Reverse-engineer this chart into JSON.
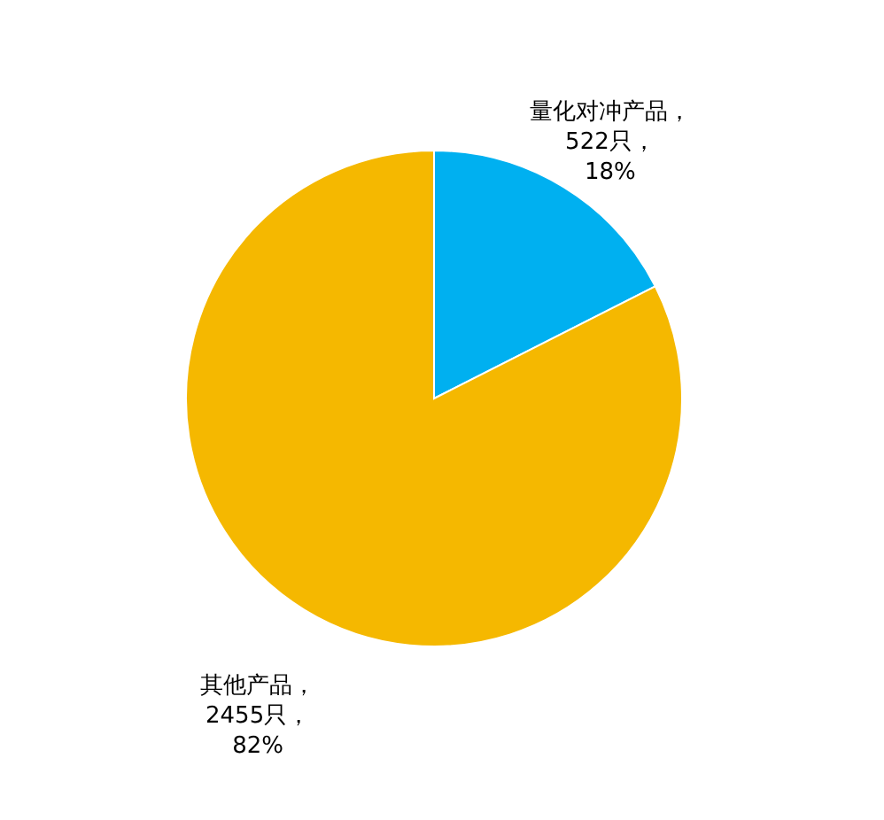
{
  "chart_data": {
    "type": "pie",
    "categories": [
      "量化对冲产品，522只，18%",
      "其他产品，2455只，82%"
    ],
    "values": [
      522,
      2455
    ],
    "colors": [
      "#00b0f0",
      "#f5b800"
    ]
  }
}
